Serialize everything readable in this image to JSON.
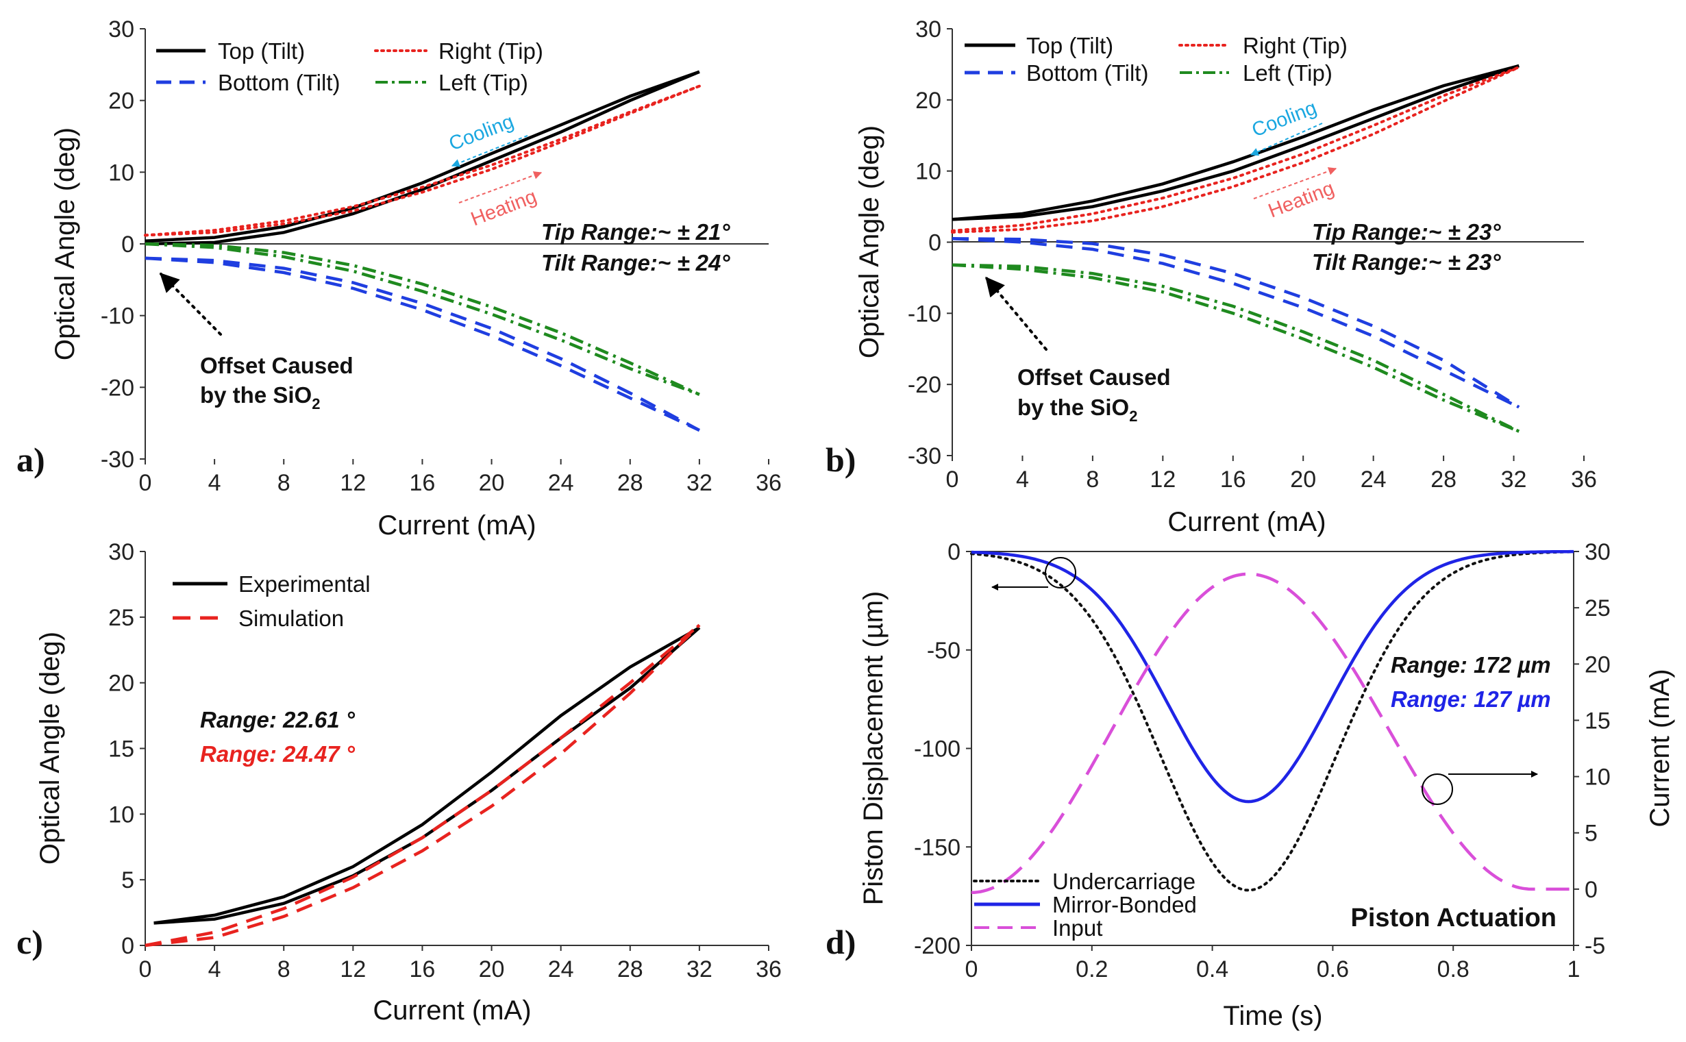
{
  "chart_data": [
    {
      "id": "a",
      "type": "line",
      "panel_label": "a)",
      "xlabel": "Current (mA)",
      "ylabel": "Optical Angle (deg)",
      "xlim": [
        0,
        36
      ],
      "ylim": [
        -30,
        30
      ],
      "xticks": [
        0,
        4,
        8,
        12,
        16,
        20,
        24,
        28,
        32,
        36
      ],
      "yticks": [
        -30,
        -20,
        -10,
        0,
        10,
        20,
        30
      ],
      "series": [
        {
          "name": "Top (Tilt)",
          "color": "#000000",
          "style": "solid",
          "x": [
            0,
            4,
            8,
            12,
            16,
            20,
            24,
            28,
            32
          ],
          "y_heating": [
            0,
            0.2,
            1.6,
            4.2,
            7.6,
            11.6,
            15.6,
            20.0,
            24.0
          ],
          "y_cooling": [
            0.4,
            0.9,
            2.4,
            5.0,
            8.5,
            12.6,
            16.6,
            20.6,
            24.0
          ]
        },
        {
          "name": "Right (Tip)",
          "color": "#e8231f",
          "style": "dotted",
          "x": [
            0,
            4,
            8,
            12,
            16,
            20,
            24,
            28,
            32
          ],
          "y_heating": [
            1.2,
            1.6,
            2.8,
            4.6,
            7.2,
            10.4,
            14.2,
            18.2,
            22.0
          ],
          "y_cooling": [
            1.2,
            1.9,
            3.2,
            5.2,
            7.9,
            11.0,
            14.6,
            18.4,
            22.0
          ]
        },
        {
          "name": "Bottom (Tilt)",
          "color": "#1f3ee0",
          "style": "dashed",
          "x": [
            0,
            4,
            8,
            12,
            16,
            20,
            24,
            28,
            32
          ],
          "y_heating": [
            -2.0,
            -2.6,
            -4.0,
            -6.2,
            -9.2,
            -12.8,
            -17.0,
            -21.5,
            -26.0
          ],
          "y_cooling": [
            -2.0,
            -2.3,
            -3.4,
            -5.4,
            -8.3,
            -11.8,
            -16.0,
            -20.8,
            -26.0
          ]
        },
        {
          "name": "Left (Tip)",
          "color": "#1f8a1f",
          "style": "dashdot",
          "x": [
            0,
            4,
            8,
            12,
            16,
            20,
            24,
            28,
            32
          ],
          "y_heating": [
            0,
            -0.5,
            -1.8,
            -3.8,
            -6.6,
            -9.8,
            -13.4,
            -17.4,
            -21.0
          ],
          "y_cooling": [
            0,
            -0.2,
            -1.2,
            -3.0,
            -5.6,
            -8.8,
            -12.4,
            -16.6,
            -21.0
          ]
        }
      ],
      "annotations": {
        "tip_range": "Tip Range:~ ± 21°",
        "tilt_range": "Tilt Range:~ ± 24°",
        "cooling": "Cooling",
        "heating": "Heating",
        "offset_line1": "Offset Caused",
        "offset_line2": "by the SiO",
        "offset_sub": "2"
      }
    },
    {
      "id": "b",
      "type": "line",
      "panel_label": "b)",
      "xlabel": "Current (mA)",
      "ylabel": "Optical Angle (deg)",
      "xlim": [
        0,
        36
      ],
      "ylim": [
        -30,
        30
      ],
      "xticks": [
        0,
        4,
        8,
        12,
        16,
        20,
        24,
        28,
        32,
        36
      ],
      "yticks": [
        -30,
        -20,
        -10,
        0,
        10,
        20,
        30
      ],
      "series": [
        {
          "name": "Top (Tilt)",
          "color": "#000000",
          "style": "solid",
          "x": [
            0,
            4,
            8,
            12,
            16,
            20,
            24,
            28,
            32.3
          ],
          "y_heating": [
            3.2,
            3.6,
            5.0,
            7.2,
            10.0,
            13.6,
            17.4,
            21.2,
            24.8
          ],
          "y_cooling": [
            3.2,
            4.0,
            5.8,
            8.2,
            11.3,
            14.8,
            18.6,
            22.0,
            24.8
          ]
        },
        {
          "name": "Right (Tip)",
          "color": "#e8231f",
          "style": "dotted",
          "x": [
            0,
            4,
            8,
            12,
            16,
            20,
            24,
            28,
            32.3
          ],
          "y_heating": [
            1.4,
            1.8,
            3.0,
            5.0,
            7.8,
            11.2,
            15.2,
            19.8,
            24.6
          ],
          "y_cooling": [
            1.6,
            2.4,
            4.0,
            6.2,
            9.0,
            12.4,
            16.4,
            20.6,
            24.6
          ]
        },
        {
          "name": "Bottom (Tilt)",
          "color": "#1f3ee0",
          "style": "dashed",
          "x": [
            0,
            4,
            8,
            12,
            16,
            20,
            24,
            28,
            32.3
          ],
          "y_heating": [
            0.5,
            0.0,
            -1.0,
            -3.0,
            -5.8,
            -9.2,
            -13.2,
            -18.0,
            -23.2
          ],
          "y_cooling": [
            0.5,
            0.4,
            -0.2,
            -1.8,
            -4.4,
            -7.8,
            -11.8,
            -16.6,
            -23.2
          ]
        },
        {
          "name": "Left (Tip)",
          "color": "#1f8a1f",
          "style": "dashdot",
          "x": [
            0,
            4,
            8,
            12,
            16,
            20,
            24,
            28,
            32.3
          ],
          "y_heating": [
            -3.2,
            -3.8,
            -5.0,
            -7.0,
            -10.0,
            -13.6,
            -17.6,
            -22.2,
            -26.6
          ],
          "y_cooling": [
            -3.2,
            -3.4,
            -4.4,
            -6.2,
            -9.0,
            -12.6,
            -16.6,
            -21.4,
            -26.6
          ]
        }
      ],
      "annotations": {
        "tip_range": "Tip Range:~ ± 23°",
        "tilt_range": "Tilt Range:~ ± 23°",
        "cooling": "Cooling",
        "heating": "Heating",
        "offset_line1": "Offset Caused",
        "offset_line2": "by the SiO",
        "offset_sub": "2"
      }
    },
    {
      "id": "c",
      "type": "line",
      "panel_label": "c)",
      "xlabel": "Current (mA)",
      "ylabel": "Optical Angle (deg)",
      "xlim": [
        0,
        36
      ],
      "ylim": [
        0,
        30
      ],
      "xticks": [
        0,
        4,
        8,
        12,
        16,
        20,
        24,
        28,
        32,
        36
      ],
      "yticks": [
        0,
        5,
        10,
        15,
        20,
        25,
        30
      ],
      "series": [
        {
          "name": "Experimental",
          "color": "#000000",
          "style": "solid",
          "x": [
            0.5,
            4,
            8,
            12,
            16,
            20,
            24,
            28,
            32
          ],
          "y_heating": [
            1.7,
            2.0,
            3.2,
            5.3,
            8.2,
            11.8,
            15.8,
            19.6,
            24.2
          ],
          "y_cooling": [
            1.7,
            2.3,
            3.7,
            6.0,
            9.2,
            13.2,
            17.5,
            21.2,
            24.2
          ]
        },
        {
          "name": "Simulation",
          "color": "#e8231f",
          "style": "dashed",
          "x": [
            0,
            4,
            8,
            12,
            16,
            20,
            24,
            28,
            32
          ],
          "y_heating": [
            0.0,
            0.6,
            2.2,
            4.4,
            7.2,
            10.6,
            14.6,
            19.2,
            24.4
          ],
          "y_cooling": [
            0.0,
            1.0,
            2.8,
            5.2,
            8.2,
            11.8,
            15.8,
            20.0,
            24.4
          ]
        }
      ],
      "annotations": {
        "range_experimental": "Range: 22.61 °",
        "range_simulation": "Range: 24.47 °"
      }
    },
    {
      "id": "d",
      "type": "line",
      "panel_label": "d)",
      "xlabel": "Time (s)",
      "ylabel": "Piston Displacement (µm)",
      "y2label": "Current (mA)",
      "xlim": [
        0,
        1
      ],
      "ylim": [
        -200,
        0
      ],
      "y2lim": [
        -5,
        30
      ],
      "xticks": [
        0,
        0.2,
        0.4,
        0.6,
        0.8,
        1
      ],
      "xtick_labels": [
        "0",
        "0.2",
        "0.4",
        "0.6",
        "0.8",
        "1"
      ],
      "yticks": [
        -200,
        -150,
        -100,
        -50,
        0
      ],
      "y2ticks": [
        -5,
        0,
        5,
        10,
        15,
        20,
        25,
        30
      ],
      "series": [
        {
          "name": "Undercarriage",
          "color": "#111111",
          "style": "dotted",
          "axis": "left",
          "min": -172,
          "t_min": 0.46
        },
        {
          "name": "Mirror-Bonded",
          "color": "#1f24e6",
          "style": "solid",
          "axis": "left",
          "min": -127,
          "t_min": 0.46
        },
        {
          "name": "Input",
          "color": "#d94fd9",
          "style": "dashed",
          "axis": "right",
          "start": -0.3,
          "peak": 28,
          "t_peak": 0.46,
          "end": 0
        }
      ],
      "annotations": {
        "range_undercarriage": "Range: 172 µm",
        "range_mirror": "Range: 127 µm",
        "title": "Piston Actuation"
      }
    }
  ]
}
